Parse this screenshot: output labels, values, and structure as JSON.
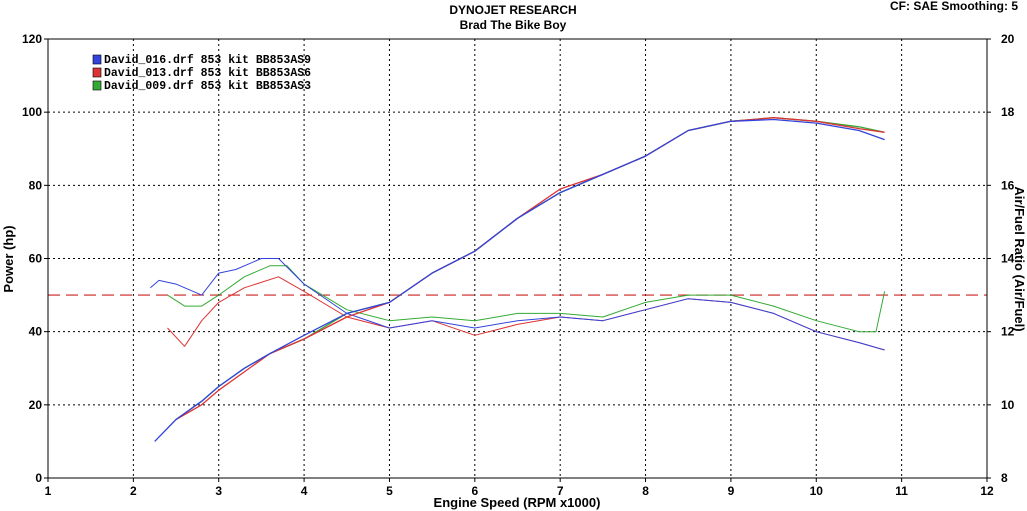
{
  "header": {
    "title": "DYNOJET RESEARCH",
    "subtitle": "Brad The Bike Boy",
    "settings": "CF: SAE  Smoothing: 5"
  },
  "chart_data": {
    "type": "line",
    "xlabel": "Engine Speed (RPM x1000)",
    "ylabel": "Power (hp)",
    "y2label": "Air/Fuel Ratio (Air/Fuel)",
    "xlim": [
      1,
      12
    ],
    "ylim": [
      0,
      120
    ],
    "y2lim": [
      8,
      20
    ],
    "xticks": [
      1,
      2,
      3,
      4,
      5,
      6,
      7,
      8,
      9,
      10,
      11,
      12
    ],
    "yticks": [
      0,
      20,
      40,
      60,
      80,
      100,
      120
    ],
    "y2ticks": [
      8,
      10,
      12,
      14,
      16,
      18,
      20
    ],
    "grid": true,
    "legend_position": "top-left",
    "reference_line": {
      "axis": "y2",
      "value": 13.0,
      "color": "#cc2222",
      "style": "dashed"
    },
    "series": [
      {
        "name": "David_016.drf 853 kit BB853AS9",
        "color": "#3344dd",
        "power": {
          "x": [
            2.25,
            2.5,
            2.8,
            3.0,
            3.3,
            3.6,
            4.0,
            4.5,
            5.0,
            5.5,
            6.0,
            6.5,
            7.0,
            7.5,
            8.0,
            8.5,
            9.0,
            9.5,
            10.0,
            10.5,
            10.8
          ],
          "y": [
            10,
            16,
            21,
            25,
            30,
            34,
            39,
            45,
            48,
            56,
            62,
            71,
            78,
            83,
            88,
            95,
            97.5,
            98,
            97,
            95,
            92.5
          ]
        },
        "afr": {
          "x": [
            2.2,
            2.3,
            2.5,
            2.8,
            3.0,
            3.2,
            3.5,
            3.7,
            4.0,
            4.5,
            5.0,
            5.5,
            6.0,
            6.5,
            7.0,
            7.5,
            8.0,
            8.5,
            9.0,
            9.5,
            10.0,
            10.5,
            10.8
          ],
          "y": [
            13.2,
            13.4,
            13.3,
            13.0,
            13.6,
            13.7,
            14.0,
            14.0,
            13.3,
            12.5,
            12.1,
            12.3,
            12.1,
            12.3,
            12.4,
            12.3,
            12.6,
            12.9,
            12.8,
            12.5,
            12.0,
            11.7,
            11.5
          ]
        }
      },
      {
        "name": "David_013.drf 853 kit BB853AS6",
        "color": "#dd3333",
        "power": {
          "x": [
            2.5,
            2.8,
            3.0,
            3.3,
            3.6,
            4.0,
            4.5,
            5.0,
            5.5,
            6.0,
            6.5,
            7.0,
            7.5,
            8.0,
            8.5,
            9.0,
            9.5,
            10.0,
            10.5,
            10.8
          ],
          "y": [
            16,
            20,
            24,
            29,
            34,
            38,
            44,
            48,
            56,
            62,
            71,
            79,
            83,
            88,
            95,
            97.5,
            98.5,
            97.5,
            95.5,
            94.5
          ]
        },
        "afr": {
          "x": [
            2.4,
            2.6,
            2.8,
            3.0,
            3.3,
            3.7,
            4.0,
            4.5,
            5.0,
            5.5,
            6.0,
            6.5,
            7.0,
            7.5,
            8.0,
            8.5,
            9.0,
            9.5,
            10.0,
            10.5,
            10.8
          ],
          "y": [
            12.1,
            11.6,
            12.3,
            12.8,
            13.2,
            13.5,
            13.1,
            12.4,
            12.1,
            12.3,
            11.9,
            12.2,
            12.4,
            12.3,
            12.6,
            12.9,
            12.8,
            12.5,
            12.0,
            11.7,
            11.5
          ]
        }
      },
      {
        "name": "David_009.drf 853 kit BB853AS3",
        "color": "#33aa33",
        "power": {
          "x": [
            2.5,
            2.8,
            3.0,
            3.3,
            3.6,
            4.0,
            4.5,
            5.0,
            5.5,
            6.0,
            6.5,
            7.0,
            7.5,
            8.0,
            8.5,
            9.0,
            9.5,
            10.0,
            10.5,
            10.8
          ],
          "y": [
            16,
            21,
            25,
            30,
            34,
            38,
            45,
            48,
            56,
            62,
            71,
            78,
            83,
            88,
            95,
            97.5,
            98.5,
            97.5,
            96,
            94.5
          ]
        },
        "afr": {
          "x": [
            2.4,
            2.6,
            2.8,
            3.0,
            3.3,
            3.6,
            3.8,
            4.0,
            4.5,
            5.0,
            5.5,
            6.0,
            6.5,
            7.0,
            7.5,
            8.0,
            8.5,
            9.0,
            9.5,
            10.0,
            10.5,
            10.7,
            10.8
          ],
          "y": [
            13.0,
            12.7,
            12.7,
            13.0,
            13.5,
            13.8,
            13.8,
            13.3,
            12.6,
            12.3,
            12.4,
            12.3,
            12.5,
            12.5,
            12.4,
            12.8,
            13.0,
            13.0,
            12.7,
            12.3,
            12.0,
            12.0,
            13.1
          ]
        }
      }
    ]
  }
}
